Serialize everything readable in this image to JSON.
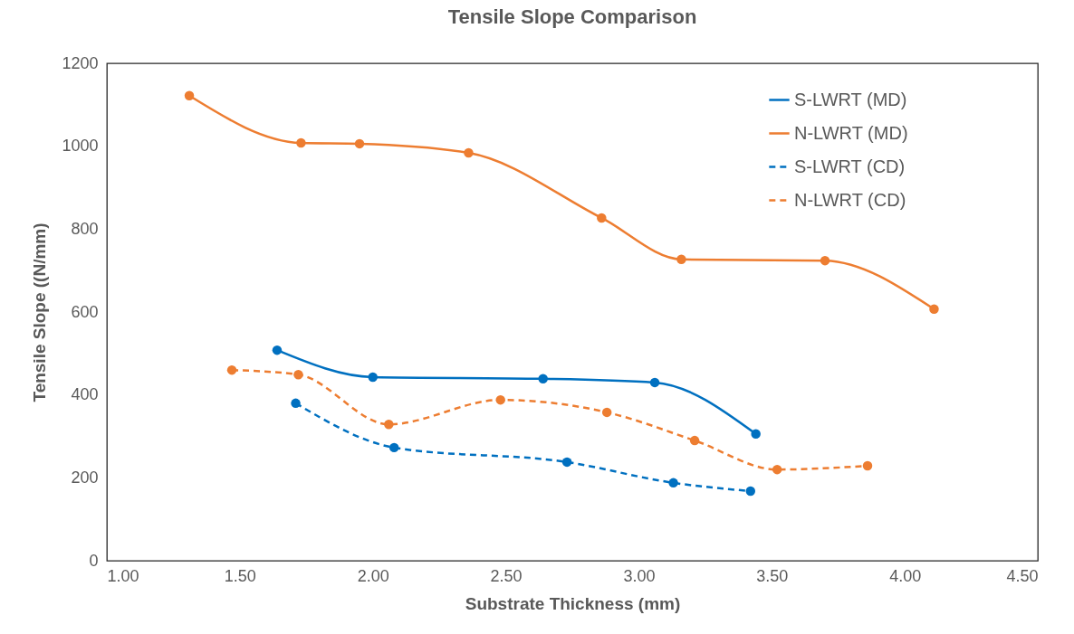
{
  "chart_data": {
    "type": "line",
    "title": "Tensile Slope Comparison",
    "xlabel": "Substrate Thickness (mm)",
    "ylabel": "Tensile Slope ((N/mm)",
    "xlim": [
      1,
      4.5
    ],
    "xticks": [
      {
        "value": 1,
        "label": "1.00"
      },
      {
        "value": 1.5,
        "label": "1.50"
      },
      {
        "value": 2,
        "label": "2.00"
      },
      {
        "value": 2.5,
        "label": "2.50"
      },
      {
        "value": 3,
        "label": "3.00"
      },
      {
        "value": 3.5,
        "label": "3.50"
      },
      {
        "value": 4,
        "label": "4.00"
      },
      {
        "value": 4.5,
        "label": "4.50"
      }
    ],
    "ylim": [
      0,
      1200
    ],
    "yticks": [
      0,
      200,
      400,
      600,
      800,
      1000,
      1200
    ],
    "grid": false,
    "legend": "top right",
    "marker": "circle",
    "series": [
      {
        "name": "S-LWRT (MD)",
        "color": "#0070c0",
        "line_style": "solid",
        "x": [
          1.64,
          2.0,
          2.64,
          3.06,
          3.44
        ],
        "values": [
          508,
          443,
          439,
          430,
          306
        ]
      },
      {
        "name": "N-LWRT (MD)",
        "color": "#ed7d31",
        "line_style": "solid",
        "x": [
          1.31,
          1.73,
          1.95,
          2.36,
          2.86,
          3.16,
          3.7,
          4.11
        ],
        "values": [
          1122,
          1008,
          1006,
          984,
          827,
          727,
          724,
          607
        ]
      },
      {
        "name": "S-LWRT (CD)",
        "color": "#0070c0",
        "line_style": "dashed",
        "x": [
          1.71,
          2.08,
          2.73,
          3.13,
          3.42
        ],
        "values": [
          380,
          273,
          238,
          188,
          168
        ]
      },
      {
        "name": "N-LWRT (CD)",
        "color": "#ed7d31",
        "line_style": "dashed",
        "x": [
          1.47,
          1.72,
          2.06,
          2.48,
          2.88,
          3.21,
          3.52,
          3.86
        ],
        "values": [
          460,
          449,
          329,
          388,
          358,
          290,
          220,
          229
        ]
      }
    ]
  }
}
